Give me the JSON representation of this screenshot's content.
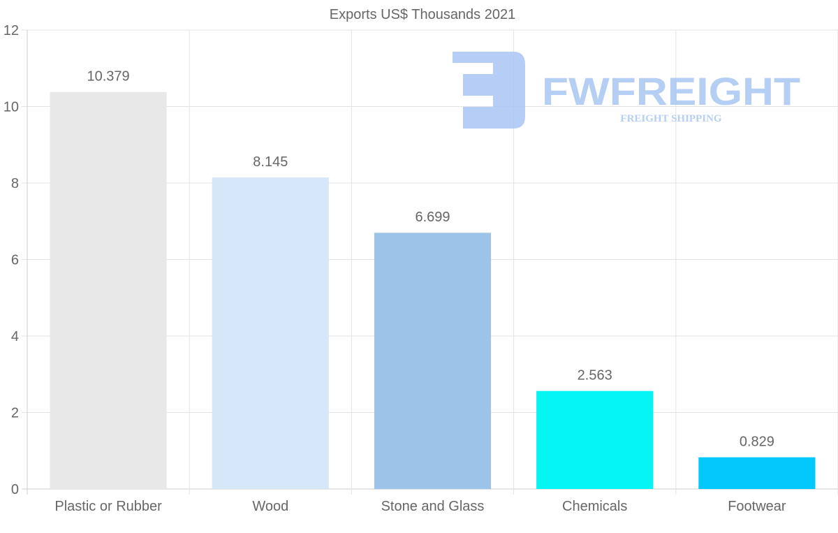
{
  "chart_data": {
    "type": "bar",
    "title": "Exports US$ Thousands 2021",
    "categories": [
      "Plastic or Rubber",
      "Wood",
      "Stone and Glass",
      "Chemicals",
      "Footwear"
    ],
    "values": [
      10.379,
      8.145,
      6.699,
      2.563,
      0.829
    ],
    "value_labels": [
      "10.379",
      "8.145",
      "6.699",
      "2.563",
      "0.829"
    ],
    "colors": [
      "#e8e8e8",
      "#d6e7f9",
      "#9bc4e8",
      "#05f5f5",
      "#03c8fb"
    ],
    "xlabel": "",
    "ylabel": "",
    "ylim": [
      0,
      12
    ],
    "yticks": [
      0,
      2,
      4,
      6,
      8,
      10,
      12
    ],
    "grid": true,
    "legend": "none"
  },
  "watermark": {
    "brand": "FWFREIGHT",
    "tagline": "FREIGHT SHIPPING",
    "color": "#a9c6f3"
  }
}
